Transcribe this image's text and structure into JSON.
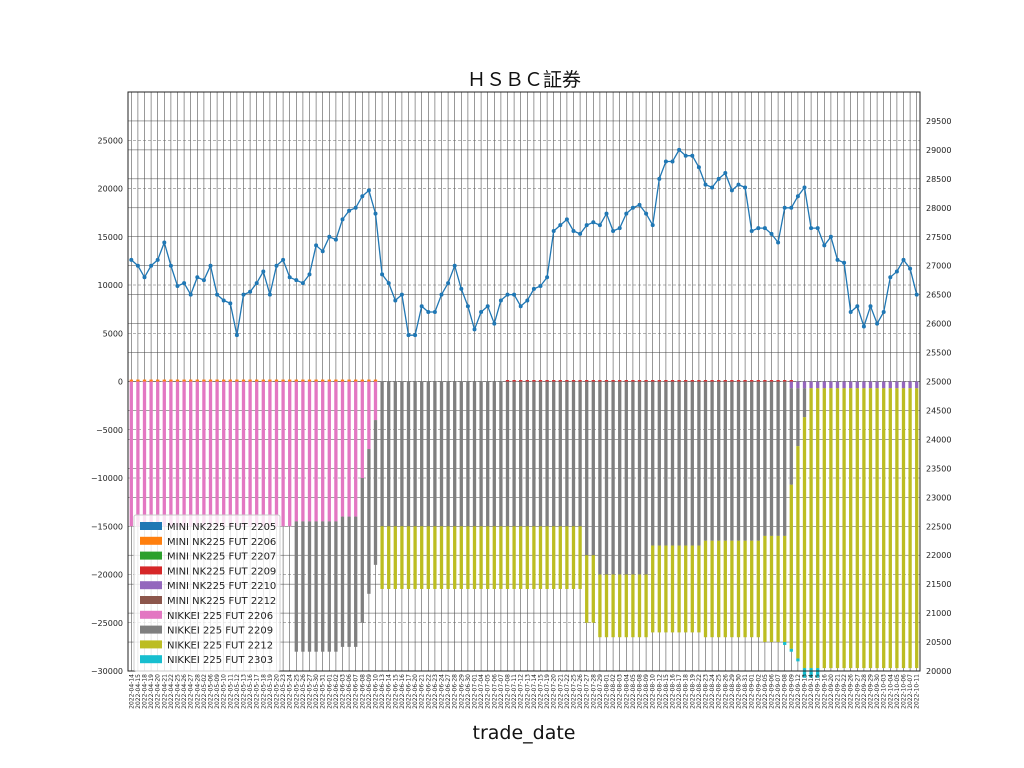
{
  "chart_data": {
    "type": "bar",
    "title": "ＨＳＢＣ証券",
    "xlabel": "trade_date",
    "ylabel": "",
    "ylim": [
      -30000,
      30000
    ],
    "y_ticks": [
      -30000,
      -25000,
      -20000,
      -15000,
      -10000,
      -5000,
      0,
      5000,
      10000,
      15000,
      20000,
      25000
    ],
    "y2lim": [
      20000,
      30000
    ],
    "y2_ticks": [
      20000,
      20500,
      21000,
      21500,
      22000,
      22500,
      23000,
      23500,
      24000,
      24500,
      25000,
      25500,
      26000,
      26500,
      27000,
      27500,
      28000,
      28500,
      29000,
      29500
    ],
    "grid": true,
    "legend_position": "lower-left",
    "categories": [
      "2022-04-14",
      "2022-04-15",
      "2022-04-18",
      "2022-04-19",
      "2022-04-20",
      "2022-04-21",
      "2022-04-22",
      "2022-04-25",
      "2022-04-26",
      "2022-04-27",
      "2022-04-28",
      "2022-05-02",
      "2022-05-06",
      "2022-05-09",
      "2022-05-10",
      "2022-05-11",
      "2022-05-12",
      "2022-05-13",
      "2022-05-16",
      "2022-05-17",
      "2022-05-18",
      "2022-05-19",
      "2022-05-20",
      "2022-05-23",
      "2022-05-24",
      "2022-05-25",
      "2022-05-26",
      "2022-05-27",
      "2022-05-30",
      "2022-05-31",
      "2022-06-01",
      "2022-06-02",
      "2022-06-03",
      "2022-06-06",
      "2022-06-07",
      "2022-06-08",
      "2022-06-09",
      "2022-06-10",
      "2022-06-13",
      "2022-06-14",
      "2022-06-15",
      "2022-06-16",
      "2022-06-17",
      "2022-06-20",
      "2022-06-21",
      "2022-06-22",
      "2022-06-23",
      "2022-06-24",
      "2022-06-27",
      "2022-06-28",
      "2022-06-29",
      "2022-06-30",
      "2022-07-01",
      "2022-07-04",
      "2022-07-05",
      "2022-07-06",
      "2022-07-07",
      "2022-07-08",
      "2022-07-11",
      "2022-07-12",
      "2022-07-13",
      "2022-07-14",
      "2022-07-15",
      "2022-07-19",
      "2022-07-20",
      "2022-07-21",
      "2022-07-22",
      "2022-07-25",
      "2022-07-26",
      "2022-07-27",
      "2022-07-28",
      "2022-07-29",
      "2022-08-01",
      "2022-08-02",
      "2022-08-03",
      "2022-08-04",
      "2022-08-05",
      "2022-08-08",
      "2022-08-09",
      "2022-08-10",
      "2022-08-12",
      "2022-08-15",
      "2022-08-16",
      "2022-08-17",
      "2022-08-18",
      "2022-08-19",
      "2022-08-22",
      "2022-08-23",
      "2022-08-24",
      "2022-08-25",
      "2022-08-26",
      "2022-08-29",
      "2022-08-30",
      "2022-08-31",
      "2022-09-01",
      "2022-09-02",
      "2022-09-05",
      "2022-09-06",
      "2022-09-07",
      "2022-09-08",
      "2022-09-09",
      "2022-09-12",
      "2022-09-13",
      "2022-09-14",
      "2022-09-15",
      "2022-09-16",
      "2022-09-20",
      "2022-09-21",
      "2022-09-22",
      "2022-09-26",
      "2022-09-27",
      "2022-09-28",
      "2022-09-29",
      "2022-09-30",
      "2022-10-03",
      "2022-10-04",
      "2022-10-05",
      "2022-10-06",
      "2022-10-07",
      "2022-10-11"
    ],
    "series": [
      {
        "name": "MINI NK225 FUT 2205",
        "color": "#1f77b4",
        "segments": []
      },
      {
        "name": "MINI NK225 FUT 2206",
        "color": "#ff7f0e",
        "segments": [
          [
            0,
            37,
            200
          ]
        ]
      },
      {
        "name": "MINI NK225 FUT 2207",
        "color": "#2ca02c",
        "segments": []
      },
      {
        "name": "MINI NK225 FUT 2209",
        "color": "#d62728",
        "segments": [
          [
            57,
            100,
            150
          ]
        ]
      },
      {
        "name": "MINI NK225 FUT 2210",
        "color": "#9467bd",
        "segments": [
          [
            100,
            119,
            -700
          ]
        ]
      },
      {
        "name": "MINI NK225 FUT 2212",
        "color": "#8c564b",
        "segments": []
      },
      {
        "name": "NIKKEI 225 FUT 2206",
        "color": "#e377c2",
        "segments": [
          [
            0,
            24,
            -15000
          ],
          [
            25,
            31,
            -14500
          ],
          [
            32,
            34,
            -14000
          ],
          [
            35,
            35,
            -10000
          ],
          [
            36,
            36,
            -7000
          ],
          [
            37,
            37,
            -4000
          ]
        ]
      },
      {
        "name": "NIKKEI 225 FUT 2209",
        "color": "#7f7f7f",
        "segments": [
          [
            25,
            34,
            -13500
          ],
          [
            35,
            37,
            -15000
          ],
          [
            38,
            68,
            -15000
          ],
          [
            69,
            70,
            -18000
          ],
          [
            71,
            78,
            -20000
          ],
          [
            79,
            86,
            -17000
          ],
          [
            87,
            95,
            -16500
          ],
          [
            96,
            99,
            -16000
          ],
          [
            100,
            100,
            -10000
          ],
          [
            101,
            101,
            -6000
          ],
          [
            102,
            102,
            -3000
          ]
        ]
      },
      {
        "name": "NIKKEI 225 FUT 2212",
        "color": "#bcbd22",
        "segments": [
          [
            38,
            68,
            -6500
          ],
          [
            69,
            70,
            -7000
          ],
          [
            71,
            78,
            -6500
          ],
          [
            79,
            86,
            -9000
          ],
          [
            87,
            95,
            -10000
          ],
          [
            96,
            99,
            -11000
          ],
          [
            100,
            100,
            -17000
          ],
          [
            101,
            101,
            -22000
          ],
          [
            102,
            102,
            -26000
          ],
          [
            103,
            119,
            -29000
          ]
        ]
      },
      {
        "name": "NIKKEI 225 FUT 2303",
        "color": "#17becf",
        "segments": [
          [
            99,
            101,
            -300
          ],
          [
            102,
            104,
            -1000
          ]
        ]
      }
    ],
    "price_line": {
      "color": "#1f77b4",
      "values": [
        27100,
        27000,
        26800,
        27000,
        27100,
        27400,
        27000,
        26650,
        26700,
        26500,
        26800,
        26750,
        27000,
        26500,
        26400,
        26350,
        25800,
        26500,
        26550,
        26700,
        26900,
        26500,
        27000,
        27100,
        26800,
        26750,
        26700,
        26850,
        27350,
        27250,
        27500,
        27450,
        27800,
        27950,
        28000,
        28200,
        28300,
        27900,
        26850,
        26700,
        26400,
        26500,
        25800,
        25800,
        26300,
        26200,
        26200,
        26500,
        26700,
        27000,
        26600,
        26300,
        25900,
        26200,
        26300,
        26000,
        26400,
        26500,
        26500,
        26300,
        26400,
        26600,
        26650,
        26800,
        27600,
        27700,
        27800,
        27600,
        27550,
        27700,
        27750,
        27700,
        27900,
        27600,
        27650,
        27900,
        28000,
        28050,
        27900,
        27700,
        28500,
        28800,
        28800,
        29000,
        28900,
        28900,
        28700,
        28400,
        28350,
        28500,
        28600,
        28300,
        28400,
        28350,
        27600,
        27650,
        27650,
        27550,
        27400,
        28000,
        28000,
        28200,
        28350,
        27650,
        27650,
        27350,
        27500,
        27100,
        27050,
        26200,
        26300,
        25950,
        26300,
        26000,
        26200,
        26800,
        26900,
        27100,
        26950,
        26500
      ]
    }
  }
}
